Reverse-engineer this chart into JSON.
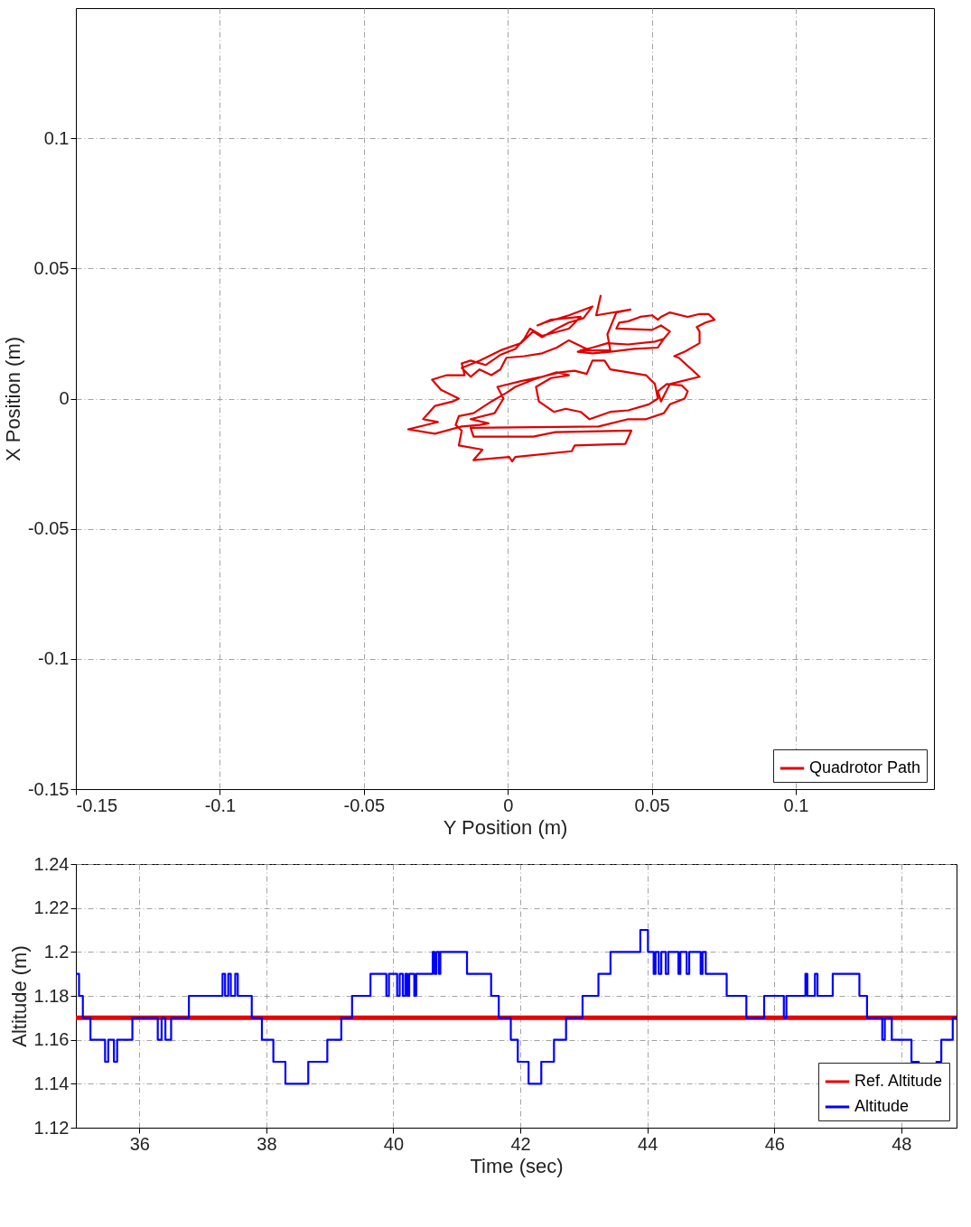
{
  "chart_data": [
    {
      "type": "line",
      "xlabel": "Y Position (m)",
      "ylabel": "X Position (m)",
      "xlim": [
        -0.15,
        0.148
      ],
      "ylim": [
        -0.15,
        0.15
      ],
      "xticks": [
        -0.15,
        -0.1,
        -0.05,
        0,
        0.05,
        0.1
      ],
      "yticks": [
        -0.15,
        -0.1,
        -0.05,
        0,
        0.05,
        0.1
      ],
      "grid": true,
      "legend": "bottom right",
      "series": [
        {
          "name": "Quadrotor Path",
          "color": "#e00000",
          "x": [
            0.0323,
            0.0307,
            0.0426,
            0.0377,
            0.0346,
            0.0356,
            0.0253,
            0.0294,
            0.0346,
            0.0418,
            0.0511,
            0.0542,
            0.0521,
            0.0439,
            0.0356,
            0.0294,
            0.0243,
            0.0274,
            0.0212,
            0.017,
            0.0119,
            0.0057,
            -0.0005,
            -0.0026,
            -0.0057,
            -0.0098,
            -0.0129,
            -0.016,
            -0.0098,
            -0.0026,
            0.0046,
            0.0088,
            0.0119,
            0.017,
            0.0212,
            0.0263,
            0.0294,
            0.0212,
            0.0129,
            0.0103,
            0.015,
            0.0253,
            0.0212,
            0.0119,
            0.0077,
            0.0057,
            0.0026,
            -0.0026,
            -0.0077,
            -0.0129,
            -0.016,
            -0.015,
            -0.0212,
            -0.0263,
            -0.0232,
            -0.017,
            -0.0191,
            -0.0253,
            -0.0294,
            -0.0243,
            -0.0346,
            -0.0253,
            -0.016,
            -0.0098,
            -0.0067,
            -0.0129,
            -0.0046,
            -0.0015,
            -0.0036,
            0.0046,
            0.0119,
            0.0181,
            0.0232,
            0.0274,
            0.0294,
            0.0336,
            0.0356,
            0.0418,
            0.048,
            0.0511,
            0.0521,
            0.049,
            0.0418,
            0.0356,
            0.0284,
            0.0253,
            0.0201,
            0.016,
            0.0108,
            0.0098,
            0.015,
            0.0212,
            0.017,
            0.0088,
            0.0026,
            -0.0005,
            -0.0057,
            -0.0119,
            -0.017,
            -0.0181,
            -0.016,
            -0.017,
            -0.0088,
            -0.0119,
            0.0005,
            0.0015,
            0.0026,
            0.0222,
            0.0232,
            0.0408,
            0.0429,
            0.0165,
            0.0088,
            -0.0119,
            -0.0129,
            0.0315,
            0.0418,
            0.048,
            0.0542,
            0.0563,
            0.0614,
            0.0625,
            0.0604,
            0.0552,
            0.0521,
            0.0532,
            0.0563,
            0.0666,
            0.0594,
            0.0578,
            0.0614,
            0.0666,
            0.0666,
            0.0656,
            0.0687,
            0.0718,
            0.0697,
            0.0666,
            0.0625,
            0.0563,
            0.0532,
            0.0521,
            0.0501,
            0.046,
            0.0418,
            0.0387,
            0.0377,
            0.0501,
            0.0532,
            0.0563,
            0.0542
          ],
          "values": [
            0.0398,
            0.032,
            0.0342,
            0.0331,
            0.0247,
            0.0185,
            0.0185,
            0.0196,
            0.0213,
            0.0208,
            0.0219,
            0.023,
            0.0196,
            0.0191,
            0.018,
            0.0174,
            0.018,
            0.0191,
            0.0224,
            0.0196,
            0.0174,
            0.0163,
            0.0157,
            0.0112,
            0.009,
            0.0112,
            0.0084,
            0.0118,
            0.0146,
            0.0185,
            0.0213,
            0.0258,
            0.0236,
            0.0269,
            0.0292,
            0.0309,
            0.0354,
            0.032,
            0.0292,
            0.0281,
            0.0303,
            0.0314,
            0.0269,
            0.0241,
            0.0269,
            0.023,
            0.0191,
            0.0168,
            0.0129,
            0.0146,
            0.0135,
            0.009,
            0.009,
            0.0073,
            0.0034,
            0,
            -0.0011,
            -0.0028,
            -0.0079,
            -0.009,
            -0.0118,
            -0.0135,
            -0.0107,
            -0.0101,
            -0.0095,
            -0.0079,
            -0.0056,
            0,
            0.0045,
            0.0067,
            0.0084,
            0.0101,
            0.0107,
            0.0095,
            0.0146,
            0.0146,
            0.0112,
            0.0101,
            0.009,
            0.0056,
            0,
            -0.0022,
            -0.0045,
            -0.0051,
            -0.0079,
            -0.0051,
            -0.0039,
            -0.0051,
            -0.0011,
            0.0045,
            0.0079,
            0.009,
            0.0101,
            0.0073,
            0.0045,
            0.0022,
            -0.0011,
            -0.0056,
            -0.0067,
            -0.0101,
            -0.0123,
            -0.018,
            -0.0196,
            -0.0236,
            -0.0224,
            -0.0241,
            -0.0224,
            -0.0202,
            -0.018,
            -0.0174,
            -0.0123,
            -0.0129,
            -0.0146,
            -0.0146,
            -0.0112,
            -0.0107,
            -0.0079,
            -0.0079,
            -0.0056,
            -0.0022,
            0,
            0.0028,
            0.0051,
            0.0056,
            0.0028,
            -0.0011,
            0.0056,
            0.0084,
            0.0157,
            0.0163,
            0.018,
            0.0213,
            0.0258,
            0.0275,
            0.0292,
            0.0303,
            0.0325,
            0.0325,
            0.0314,
            0.0331,
            0.0314,
            0.0303,
            0.032,
            0.0314,
            0.0297,
            0.0292,
            0.0269,
            0.0264,
            0.0281,
            0.0258,
            0.023
          ]
        }
      ]
    },
    {
      "type": "line",
      "xlabel": "Time (sec)",
      "ylabel": "Altitude (m)",
      "xlim": [
        35,
        48.87
      ],
      "ylim": [
        1.12,
        1.24
      ],
      "xticks": [
        36,
        38,
        40,
        42,
        44,
        46,
        48
      ],
      "yticks": [
        1.12,
        1.14,
        1.16,
        1.18,
        1.2,
        1.22,
        1.24
      ],
      "grid": true,
      "legend": "bottom right",
      "series": [
        {
          "name": "Ref. Altitude",
          "color": "#e60000",
          "x": [
            35,
            48.87
          ],
          "values": [
            1.17,
            1.17
          ]
        },
        {
          "name": "Altitude",
          "type": "step",
          "color": "#0000ff",
          "x": [
            35,
            35.05,
            35.11,
            35.23,
            35.46,
            35.51,
            35.6,
            35.65,
            35.89,
            36.29,
            36.35,
            36.41,
            36.5,
            36.78,
            37.31,
            37.35,
            37.4,
            37.44,
            37.51,
            37.55,
            37.77,
            37.93,
            38.11,
            38.3,
            38.66,
            38.96,
            39.18,
            39.35,
            39.64,
            39.89,
            39.93,
            40.06,
            40.1,
            40.15,
            40.19,
            40.22,
            40.25,
            40.33,
            40.36,
            40.62,
            40.65,
            40.68,
            40.72,
            40.74,
            41.16,
            41.54,
            41.66,
            41.85,
            41.96,
            42.13,
            42.33,
            42.53,
            42.72,
            42.98,
            43.23,
            43.42,
            43.89,
            44.01,
            44.1,
            44.13,
            44.18,
            44.22,
            44.29,
            44.33,
            44.49,
            44.52,
            44.62,
            44.66,
            44.84,
            44.87,
            44.92,
            45.25,
            45.56,
            45.84,
            46.15,
            46.19,
            46.49,
            46.52,
            46.64,
            46.68,
            46.92,
            47.34,
            47.46,
            47.7,
            47.74,
            47.85,
            48.16,
            48.29,
            48.3,
            48.54,
            48.63,
            48.81,
            48.87
          ],
          "values": [
            1.19,
            1.18,
            1.17,
            1.16,
            1.15,
            1.16,
            1.15,
            1.16,
            1.17,
            1.16,
            1.17,
            1.16,
            1.17,
            1.18,
            1.19,
            1.18,
            1.19,
            1.18,
            1.19,
            1.18,
            1.17,
            1.16,
            1.15,
            1.14,
            1.15,
            1.16,
            1.17,
            1.18,
            1.19,
            1.18,
            1.19,
            1.18,
            1.19,
            1.18,
            1.19,
            1.18,
            1.19,
            1.18,
            1.19,
            1.2,
            1.19,
            1.2,
            1.19,
            1.2,
            1.19,
            1.18,
            1.17,
            1.16,
            1.15,
            1.14,
            1.15,
            1.16,
            1.17,
            1.18,
            1.19,
            1.2,
            1.21,
            1.2,
            1.19,
            1.2,
            1.19,
            1.2,
            1.19,
            1.2,
            1.19,
            1.2,
            1.19,
            1.2,
            1.19,
            1.2,
            1.19,
            1.18,
            1.17,
            1.18,
            1.17,
            1.18,
            1.19,
            1.18,
            1.19,
            1.18,
            1.19,
            1.18,
            1.17,
            1.16,
            1.17,
            1.16,
            1.15,
            1.15,
            null,
            1.15,
            1.16,
            1.17,
            1.17
          ]
        }
      ]
    }
  ]
}
